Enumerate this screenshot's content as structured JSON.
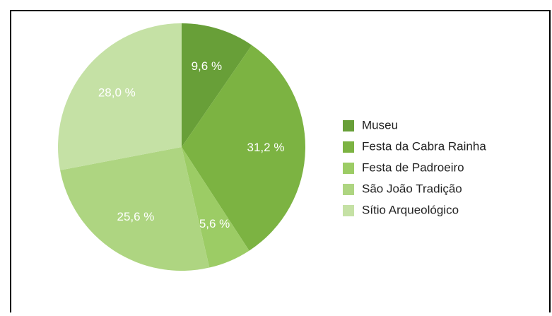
{
  "chart_data": {
    "type": "pie",
    "categories": [
      "Museu",
      "Festa da Cabra Rainha",
      "Festa de Padroeiro",
      "São João Tradição",
      "Sítio Arqueológico"
    ],
    "values": [
      9.6,
      31.2,
      5.6,
      25.6,
      28.0
    ],
    "value_labels": [
      "9,6 %",
      "31,2 %",
      "5,6 %",
      "25,6 %",
      "28,0 %"
    ],
    "colors": [
      "#689f38",
      "#7cb342",
      "#9ccc65",
      "#aed581",
      "#c5e1a5"
    ],
    "legend": "right"
  }
}
